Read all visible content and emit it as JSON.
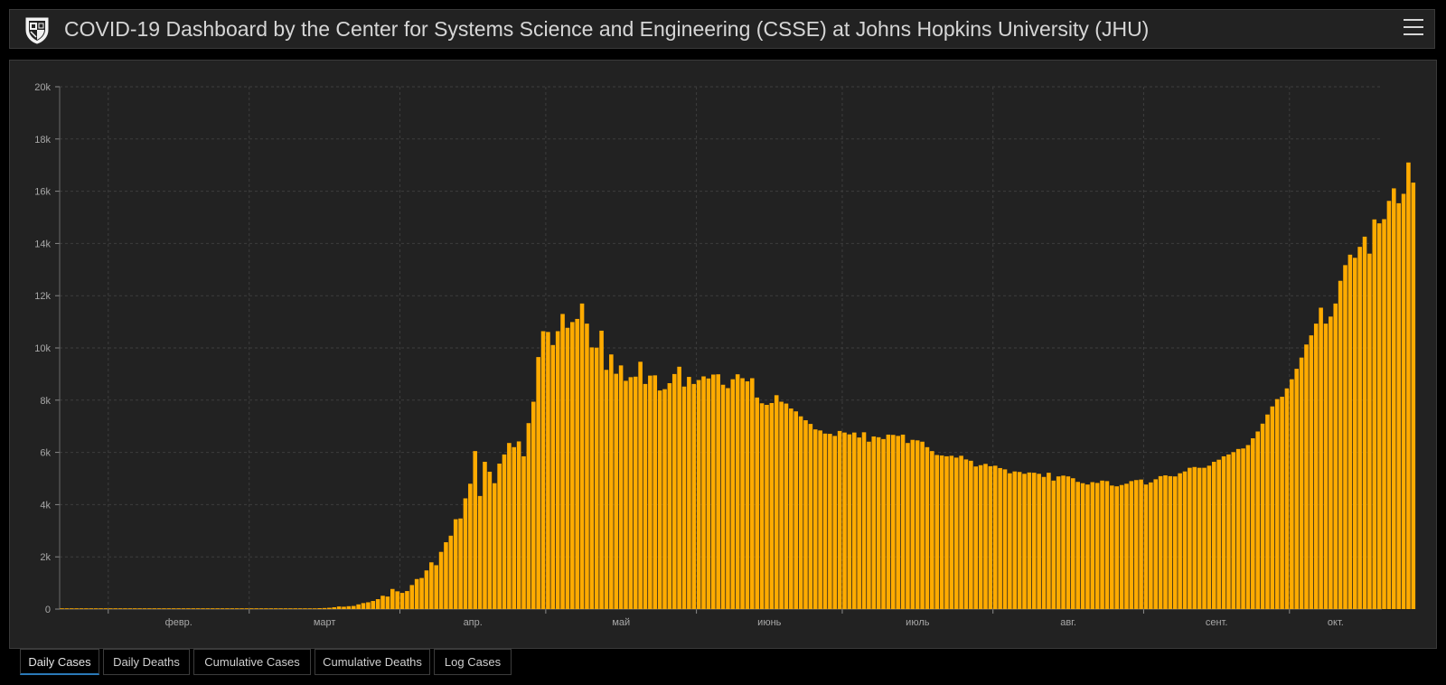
{
  "header": {
    "title": "COVID-19 Dashboard by the Center for Systems Science and Engineering (CSSE) at Johns Hopkins University (JHU)"
  },
  "colors": {
    "bar": "#ffab00",
    "background": "#222222",
    "grid": "#3d3d3d",
    "axis_text": "#a8a8a8",
    "active_tab": "#2a7ab8"
  },
  "icons": {
    "logo": "jhu-shield-icon",
    "menu": "hamburger-menu-icon"
  },
  "tabs": [
    {
      "label": "Daily Cases",
      "active": true
    },
    {
      "label": "Daily Deaths",
      "active": false
    },
    {
      "label": "Cumulative Cases",
      "active": false
    },
    {
      "label": "Cumulative Deaths",
      "active": false
    },
    {
      "label": "Log Cases",
      "active": false
    }
  ],
  "chart_data": {
    "type": "bar",
    "title": "",
    "xlabel": "",
    "ylabel": "",
    "ylim": [
      0,
      20000
    ],
    "grid": true,
    "y_ticks": [
      0,
      2000,
      4000,
      6000,
      8000,
      10000,
      12000,
      14000,
      16000,
      18000,
      20000
    ],
    "y_tick_labels": [
      "0",
      "2k",
      "4k",
      "6k",
      "8k",
      "10k",
      "12k",
      "14k",
      "16k",
      "18k",
      "20k"
    ],
    "x_range": [
      "2020-01-22",
      "2020-10-19"
    ],
    "x_month_labels": [
      {
        "date": "2020-02-01",
        "label": "февр."
      },
      {
        "date": "2020-03-01",
        "label": "март"
      },
      {
        "date": "2020-04-01",
        "label": "апр."
      },
      {
        "date": "2020-05-01",
        "label": "май"
      },
      {
        "date": "2020-06-01",
        "label": "июнь"
      },
      {
        "date": "2020-07-01",
        "label": "июль"
      },
      {
        "date": "2020-08-01",
        "label": "авг."
      },
      {
        "date": "2020-09-01",
        "label": "сент."
      },
      {
        "date": "2020-10-01",
        "label": "окт."
      }
    ],
    "series": [
      {
        "start_date": "2020-01-22",
        "values": [
          0,
          0,
          0,
          0,
          0,
          0,
          0,
          0,
          0,
          0,
          0,
          0,
          0,
          0,
          0,
          0,
          0,
          0,
          0,
          0,
          0,
          0,
          0,
          0,
          0,
          0,
          0,
          0,
          0,
          0,
          0,
          0,
          0,
          0,
          0,
          0,
          0,
          0,
          0,
          0,
          0,
          0,
          0,
          0,
          0,
          0,
          0,
          0,
          0,
          0,
          0,
          0,
          0,
          20,
          40,
          50,
          70,
          100,
          90,
          110,
          120,
          180,
          230,
          260,
          310,
          380,
          510,
          480,
          770,
          680,
          620,
          690,
          920,
          1150,
          1190,
          1480,
          1790,
          1680,
          2190,
          2560,
          2810,
          3440,
          3470,
          4240,
          4800,
          6050,
          4330,
          5640,
          5260,
          4820,
          5570,
          5920,
          6360,
          6200,
          6420,
          5850,
          7120,
          7940,
          9650,
          10640,
          10610,
          10110,
          10640,
          11300,
          10770,
          10990,
          11110,
          11700,
          10930,
          10020,
          10010,
          10660,
          9160,
          9750,
          9010,
          9330,
          8740,
          8880,
          8900,
          9470,
          8620,
          8940,
          8950,
          8370,
          8420,
          8650,
          9000,
          9280,
          8520,
          8890,
          8620,
          8770,
          8910,
          8830,
          8980,
          8990,
          8590,
          8460,
          8800,
          8990,
          8840,
          8720,
          8840,
          8100,
          7880,
          7820,
          7890,
          8190,
          7940,
          7870,
          7680,
          7570,
          7380,
          7230,
          7090,
          6880,
          6840,
          6720,
          6710,
          6630,
          6820,
          6760,
          6690,
          6760,
          6570,
          6770,
          6410,
          6610,
          6580,
          6510,
          6680,
          6670,
          6630,
          6680,
          6360,
          6480,
          6460,
          6410,
          6200,
          6050,
          5900,
          5880,
          5850,
          5870,
          5800,
          5870,
          5730,
          5680,
          5460,
          5510,
          5560,
          5470,
          5490,
          5400,
          5350,
          5200,
          5270,
          5250,
          5180,
          5230,
          5220,
          5180,
          5060,
          5220,
          4920,
          5080,
          5110,
          5080,
          5010,
          4870,
          4820,
          4770,
          4860,
          4830,
          4920,
          4900,
          4730,
          4700,
          4750,
          4800,
          4900,
          4940,
          4960,
          4770,
          4850,
          4970,
          5090,
          5120,
          5090,
          5080,
          5200,
          5270,
          5410,
          5440,
          5410,
          5410,
          5490,
          5640,
          5720,
          5850,
          5920,
          6010,
          6130,
          6150,
          6280,
          6540,
          6800,
          7100,
          7450,
          7760,
          8040,
          8130,
          8450,
          8800,
          9200,
          9630,
          10130,
          10480,
          10930,
          11540,
          10930,
          11200,
          11700,
          12570,
          13170,
          13570,
          13450,
          13870,
          14260,
          13610,
          14920,
          14770,
          14930,
          15630,
          16110,
          15540,
          15900,
          17100,
          16330
        ]
      }
    ]
  }
}
